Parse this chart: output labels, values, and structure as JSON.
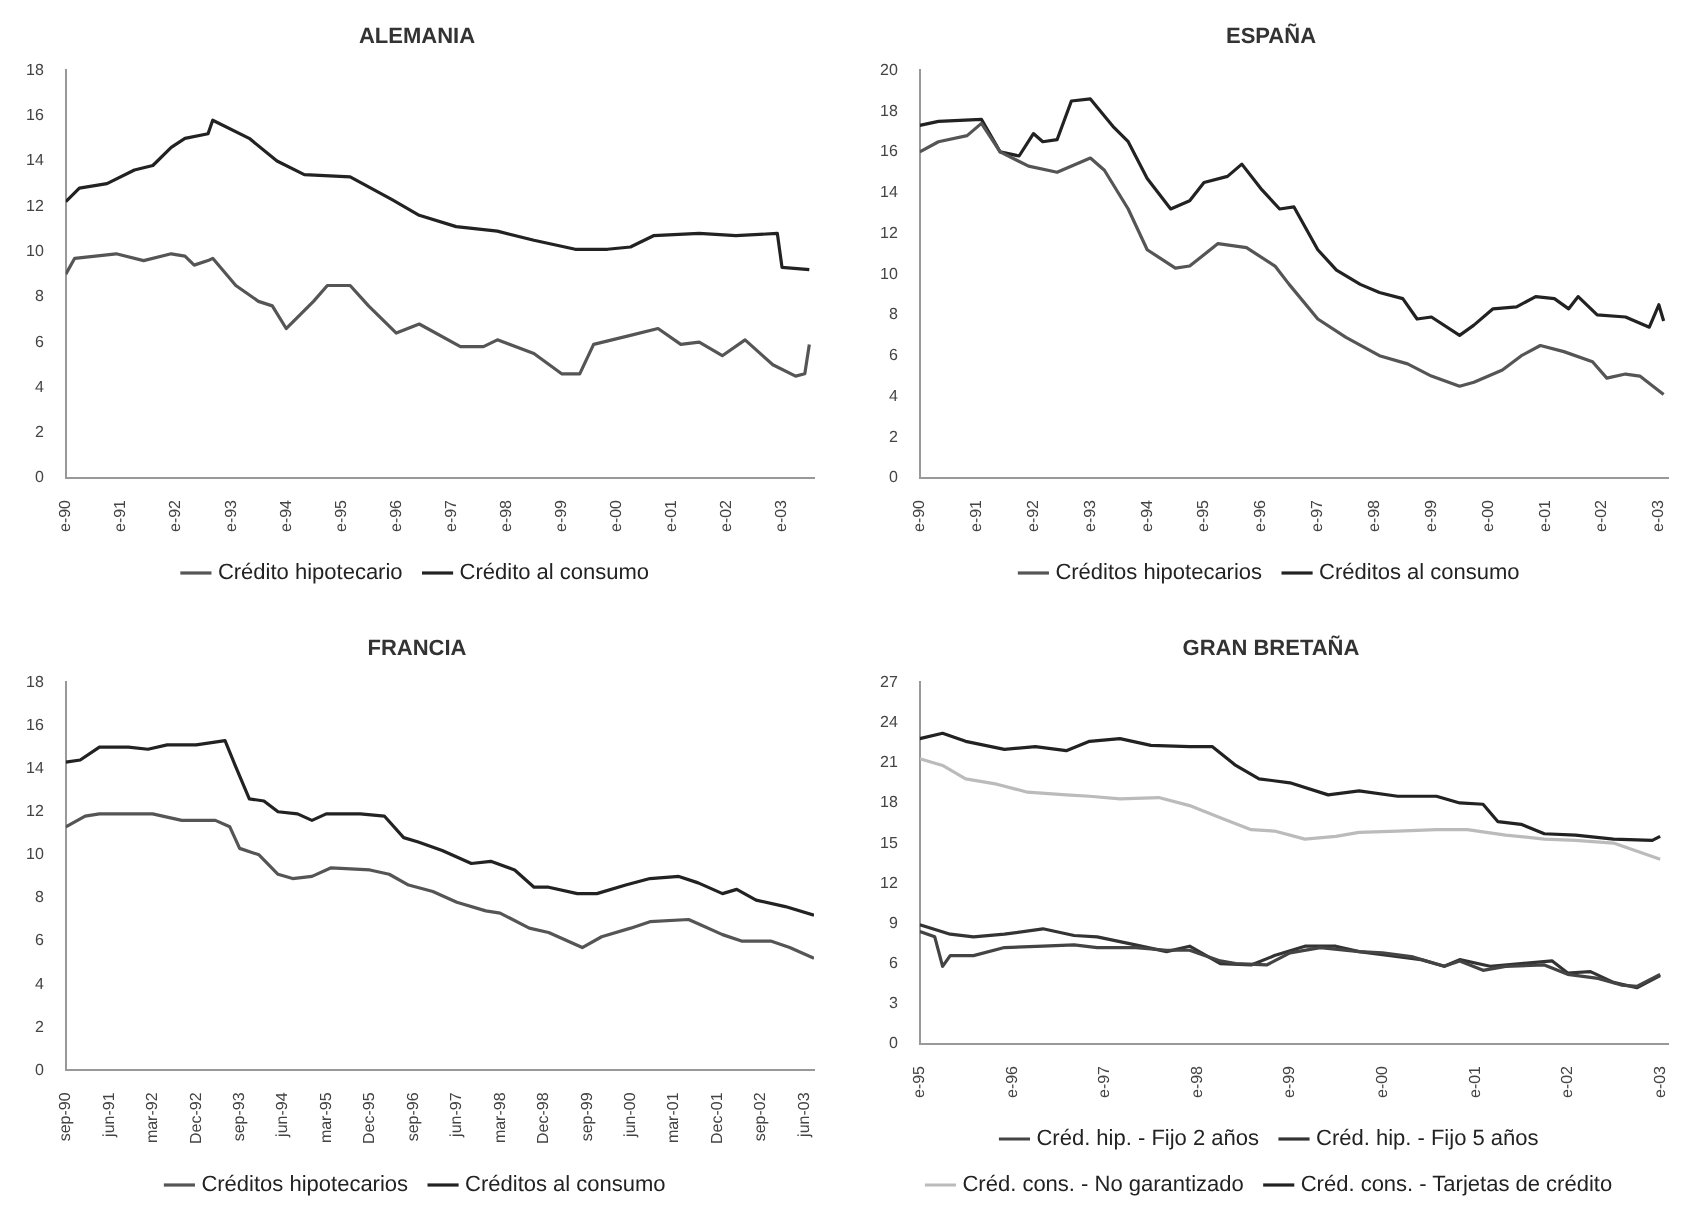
{
  "chart_data": [
    {
      "type": "line",
      "title": "ALEMANIA",
      "legend": "bottom",
      "grid": false,
      "marker": "none",
      "line_style": "solid",
      "xlim": [
        "1990-01",
        "2003-08"
      ],
      "xticks": [
        {
          "value": "1990-01",
          "label": "e-90"
        },
        {
          "value": "1991-01",
          "label": "e-91"
        },
        {
          "value": "1992-01",
          "label": "e-92"
        },
        {
          "value": "1993-01",
          "label": "e-93"
        },
        {
          "value": "1994-01",
          "label": "e-94"
        },
        {
          "value": "1995-01",
          "label": "e-95"
        },
        {
          "value": "1996-01",
          "label": "e-96"
        },
        {
          "value": "1997-01",
          "label": "e-97"
        },
        {
          "value": "1998-01",
          "label": "e-98"
        },
        {
          "value": "1999-01",
          "label": "e-99"
        },
        {
          "value": "2000-01",
          "label": "e-00"
        },
        {
          "value": "2001-01",
          "label": "e-01"
        },
        {
          "value": "2002-01",
          "label": "e-02"
        },
        {
          "value": "2003-01",
          "label": "e-03"
        }
      ],
      "ylim": [
        0,
        18
      ],
      "yticks": [
        0,
        2,
        4,
        6,
        8,
        10,
        12,
        14,
        16,
        18
      ],
      "series": [
        {
          "name": "Crédito hipotecario",
          "color": "#555555",
          "x": [
            "1990-01",
            "1990-03",
            "1990-12",
            "1991-06",
            "1991-12",
            "1992-03",
            "1992-05",
            "1992-08",
            "1992-09",
            "1993-02",
            "1993-07",
            "1993-10",
            "1994-01",
            "1994-07",
            "1994-10",
            "1995-03",
            "1995-07",
            "1996-01",
            "1996-06",
            "1997-03",
            "1997-08",
            "1997-11",
            "1998-07",
            "1999-01",
            "1999-05",
            "1999-08",
            "2000-04",
            "2000-10",
            "2001-03",
            "2001-07",
            "2001-12",
            "2002-05",
            "2002-11",
            "2003-04",
            "2003-06",
            "2003-07"
          ],
          "values": [
            9.0,
            9.7,
            9.9,
            9.6,
            9.9,
            9.8,
            9.4,
            9.6,
            9.7,
            8.5,
            7.8,
            7.6,
            6.6,
            7.8,
            8.5,
            8.5,
            7.6,
            6.4,
            6.8,
            5.8,
            5.8,
            6.1,
            5.5,
            4.6,
            4.6,
            5.9,
            6.3,
            6.6,
            5.9,
            6.0,
            5.4,
            6.1,
            5.0,
            4.5,
            4.6,
            5.9
          ]
        },
        {
          "name": "Crédito al consumo",
          "color": "#222222",
          "x": [
            "1990-01",
            "1990-04",
            "1990-10",
            "1991-04",
            "1991-08",
            "1991-12",
            "1992-03",
            "1992-08",
            "1992-09",
            "1993-05",
            "1993-11",
            "1994-05",
            "1995-03",
            "1995-12",
            "1996-06",
            "1997-02",
            "1997-11",
            "1998-07",
            "1999-04",
            "1999-11",
            "2000-04",
            "2000-09",
            "2001-07",
            "2002-03",
            "2002-12",
            "2003-01",
            "2003-07"
          ],
          "values": [
            12.2,
            12.8,
            13.0,
            13.6,
            13.8,
            14.6,
            15.0,
            15.2,
            15.8,
            15.0,
            14.0,
            13.4,
            13.3,
            12.3,
            11.6,
            11.1,
            10.9,
            10.5,
            10.1,
            10.1,
            10.2,
            10.7,
            10.8,
            10.7,
            10.8,
            9.3,
            9.2
          ]
        }
      ]
    },
    {
      "type": "line",
      "title": "ESPAÑA",
      "legend": "bottom",
      "grid": false,
      "marker": "none",
      "line_style": "solid",
      "xlim": [
        "1990-01",
        "2003-03"
      ],
      "xticks": [
        {
          "value": "1990-01",
          "label": "e-90"
        },
        {
          "value": "1991-01",
          "label": "e-91"
        },
        {
          "value": "1992-01",
          "label": "e-92"
        },
        {
          "value": "1993-01",
          "label": "e-93"
        },
        {
          "value": "1994-01",
          "label": "e-94"
        },
        {
          "value": "1995-01",
          "label": "e-95"
        },
        {
          "value": "1996-01",
          "label": "e-96"
        },
        {
          "value": "1997-01",
          "label": "e-97"
        },
        {
          "value": "1998-01",
          "label": "e-98"
        },
        {
          "value": "1999-01",
          "label": "e-99"
        },
        {
          "value": "2000-01",
          "label": "e-00"
        },
        {
          "value": "2001-01",
          "label": "e-01"
        },
        {
          "value": "2002-01",
          "label": "e-02"
        },
        {
          "value": "2003-01",
          "label": "e-03"
        }
      ],
      "ylim": [
        0,
        20
      ],
      "yticks": [
        0,
        2,
        4,
        6,
        8,
        10,
        12,
        14,
        16,
        18,
        20
      ],
      "series": [
        {
          "name": "Créditos hipotecarios",
          "color": "#555555",
          "x": [
            "1990-01",
            "1990-05",
            "1990-11",
            "1991-02",
            "1991-06",
            "1991-12",
            "1992-06",
            "1993-01",
            "1993-04",
            "1993-09",
            "1994-01",
            "1994-07",
            "1994-10",
            "1995-04",
            "1995-10",
            "1996-04",
            "1996-07",
            "1997-01",
            "1997-07",
            "1998-02",
            "1998-08",
            "1999-01",
            "1999-07",
            "1999-10",
            "2000-04",
            "2000-08",
            "2000-12",
            "2001-05",
            "2001-11",
            "2002-02",
            "2002-06",
            "2002-09",
            "2003-02"
          ],
          "values": [
            16.0,
            16.5,
            16.8,
            17.4,
            16.0,
            15.3,
            15.0,
            15.7,
            15.1,
            13.2,
            11.2,
            10.3,
            10.4,
            11.5,
            11.3,
            10.4,
            9.5,
            7.8,
            6.9,
            6.0,
            5.6,
            5.0,
            4.5,
            4.7,
            5.3,
            6.0,
            6.5,
            6.2,
            5.7,
            4.9,
            5.1,
            5.0,
            4.1
          ]
        },
        {
          "name": "Créditos al consumo",
          "color": "#222222",
          "x": [
            "1990-01",
            "1990-05",
            "1991-02",
            "1991-06",
            "1991-10",
            "1992-01",
            "1992-03",
            "1992-06",
            "1992-09",
            "1993-01",
            "1993-06",
            "1993-09",
            "1994-01",
            "1994-06",
            "1994-10",
            "1995-01",
            "1995-06",
            "1995-09",
            "1996-01",
            "1996-05",
            "1996-08",
            "1997-01",
            "1997-05",
            "1997-10",
            "1998-02",
            "1998-07",
            "1998-10",
            "1999-01",
            "1999-07",
            "1999-10",
            "2000-02",
            "2000-07",
            "2000-11",
            "2001-03",
            "2001-06",
            "2001-08",
            "2001-12",
            "2002-06",
            "2002-11",
            "2003-01",
            "2003-02"
          ],
          "values": [
            17.3,
            17.5,
            17.6,
            16.0,
            15.8,
            16.9,
            16.5,
            16.6,
            18.5,
            18.6,
            17.2,
            16.5,
            14.7,
            13.2,
            13.6,
            14.5,
            14.8,
            15.4,
            14.2,
            13.2,
            13.3,
            11.2,
            10.2,
            9.5,
            9.1,
            8.8,
            7.8,
            7.9,
            7.0,
            7.5,
            8.3,
            8.4,
            8.9,
            8.8,
            8.3,
            8.9,
            8.0,
            7.9,
            7.4,
            8.5,
            7.7
          ]
        }
      ]
    },
    {
      "type": "line",
      "title": "FRANCIA",
      "legend": "bottom",
      "grid": false,
      "marker": "none",
      "line_style": "solid",
      "xlim": [
        "1990-09",
        "2003-08"
      ],
      "xticks": [
        {
          "value": "1990-09",
          "label": "sep-90"
        },
        {
          "value": "1991-06",
          "label": "jun-91"
        },
        {
          "value": "1992-03",
          "label": "mar-92"
        },
        {
          "value": "1992-12",
          "label": "Dec-92"
        },
        {
          "value": "1993-09",
          "label": "sep-93"
        },
        {
          "value": "1994-06",
          "label": "jun-94"
        },
        {
          "value": "1995-03",
          "label": "mar-95"
        },
        {
          "value": "1995-12",
          "label": "Dec-95"
        },
        {
          "value": "1996-09",
          "label": "sep-96"
        },
        {
          "value": "1997-06",
          "label": "jun-97"
        },
        {
          "value": "1998-03",
          "label": "mar-98"
        },
        {
          "value": "1998-12",
          "label": "Dec-98"
        },
        {
          "value": "1999-09",
          "label": "sep-99"
        },
        {
          "value": "2000-06",
          "label": "jun-00"
        },
        {
          "value": "2001-03",
          "label": "mar-01"
        },
        {
          "value": "2001-12",
          "label": "Dec-01"
        },
        {
          "value": "2002-09",
          "label": "sep-02"
        },
        {
          "value": "2003-06",
          "label": "jun-03"
        }
      ],
      "ylim": [
        0,
        18
      ],
      "yticks": [
        0,
        2,
        4,
        6,
        8,
        10,
        12,
        14,
        16,
        18
      ],
      "series": [
        {
          "name": "Créditos hipotecarios",
          "color": "#555555",
          "x": [
            "1990-09",
            "1991-01",
            "1991-04",
            "1991-10",
            "1992-03",
            "1992-09",
            "1993-04",
            "1993-07",
            "1993-09",
            "1994-01",
            "1994-05",
            "1994-08",
            "1994-12",
            "1995-04",
            "1995-12",
            "1996-04",
            "1996-08",
            "1997-01",
            "1997-06",
            "1997-12",
            "1998-03",
            "1998-09",
            "1999-01",
            "1999-08",
            "1999-12",
            "2000-06",
            "2000-10",
            "2001-06",
            "2001-08",
            "2002-01",
            "2002-05",
            "2002-11",
            "2003-03",
            "2003-08"
          ],
          "values": [
            11.3,
            11.8,
            11.9,
            11.9,
            11.9,
            11.6,
            11.6,
            11.3,
            10.3,
            10.0,
            9.1,
            8.9,
            9.0,
            9.4,
            9.3,
            9.1,
            8.6,
            8.3,
            7.8,
            7.4,
            7.3,
            6.6,
            6.4,
            5.7,
            6.2,
            6.6,
            6.9,
            7.0,
            6.8,
            6.3,
            6.0,
            6.0,
            5.7,
            5.2
          ]
        },
        {
          "name": "Créditos al consumo",
          "color": "#222222",
          "x": [
            "1990-09",
            "1990-12",
            "1991-04",
            "1991-10",
            "1992-02",
            "1992-06",
            "1992-12",
            "1993-06",
            "1993-08",
            "1993-11",
            "1994-02",
            "1994-05",
            "1994-09",
            "1994-12",
            "1995-03",
            "1995-10",
            "1996-03",
            "1996-07",
            "1996-10",
            "1997-03",
            "1997-09",
            "1998-01",
            "1998-06",
            "1998-10",
            "1999-01",
            "1999-07",
            "1999-11",
            "2000-05",
            "2000-10",
            "2001-04",
            "2001-08",
            "2002-01",
            "2002-04",
            "2002-08",
            "2003-02",
            "2003-08"
          ],
          "values": [
            14.3,
            14.4,
            15.0,
            15.0,
            14.9,
            15.1,
            15.1,
            15.3,
            14.2,
            12.6,
            12.5,
            12.0,
            11.9,
            11.6,
            11.9,
            11.9,
            11.8,
            10.8,
            10.6,
            10.2,
            9.6,
            9.7,
            9.3,
            8.5,
            8.5,
            8.2,
            8.2,
            8.6,
            8.9,
            9.0,
            8.7,
            8.2,
            8.4,
            7.9,
            7.6,
            7.2
          ]
        }
      ]
    },
    {
      "type": "line",
      "title": "GRAN BRETAÑA",
      "legend": "bottom",
      "grid": false,
      "marker": "none",
      "line_style": "solid",
      "xlim": [
        "1995-01",
        "2003-02"
      ],
      "xticks": [
        {
          "value": "1995-01",
          "label": "e-95"
        },
        {
          "value": "1996-01",
          "label": "e-96"
        },
        {
          "value": "1997-01",
          "label": "e-97"
        },
        {
          "value": "1998-01",
          "label": "e-98"
        },
        {
          "value": "1999-01",
          "label": "e-99"
        },
        {
          "value": "2000-01",
          "label": "e-00"
        },
        {
          "value": "2001-01",
          "label": "e-01"
        },
        {
          "value": "2002-01",
          "label": "e-02"
        },
        {
          "value": "2003-01",
          "label": "e-03"
        }
      ],
      "ylim": [
        0,
        27
      ],
      "yticks": [
        0,
        3,
        6,
        9,
        12,
        15,
        18,
        21,
        24,
        27
      ],
      "series": [
        {
          "name": "Créd. hip. - Fijo 2 años",
          "color": "#444444",
          "x": [
            "1995-01",
            "1995-03",
            "1995-04",
            "1995-05",
            "1995-08",
            "1995-12",
            "1996-05",
            "1996-09",
            "1996-12",
            "1997-05",
            "1997-09",
            "1997-12",
            "1998-04",
            "1998-06",
            "1998-10",
            "1999-01",
            "1999-05",
            "1999-10",
            "2000-01",
            "2000-05",
            "2000-09",
            "2000-11",
            "2001-02",
            "2001-05",
            "2001-10",
            "2002-01",
            "2002-05",
            "2002-08",
            "2002-10",
            "2003-01"
          ],
          "values": [
            8.4,
            8.0,
            5.8,
            6.6,
            6.6,
            7.2,
            7.3,
            7.4,
            7.2,
            7.2,
            7.0,
            7.0,
            6.2,
            6.0,
            5.9,
            6.8,
            7.2,
            6.9,
            6.8,
            6.5,
            5.8,
            6.2,
            5.5,
            5.8,
            5.9,
            5.2,
            4.9,
            4.4,
            4.3,
            5.2
          ]
        },
        {
          "name": "Créd. hip. - Fijo 5 años",
          "color": "#333333",
          "x": [
            "1995-01",
            "1995-05",
            "1995-08",
            "1995-12",
            "1996-05",
            "1996-09",
            "1996-12",
            "1997-05",
            "1997-09",
            "1997-12",
            "1998-04",
            "1998-08",
            "1998-11",
            "1999-03",
            "1999-07",
            "1999-10",
            "2000-02",
            "2000-06",
            "2000-09",
            "2000-11",
            "2001-03",
            "2001-07",
            "2001-11",
            "2002-01",
            "2002-04",
            "2002-07",
            "2002-10",
            "2003-01"
          ],
          "values": [
            8.9,
            8.2,
            8.0,
            8.2,
            8.6,
            8.1,
            8.0,
            7.4,
            6.9,
            7.3,
            6.0,
            5.9,
            6.6,
            7.3,
            7.3,
            6.9,
            6.6,
            6.3,
            5.8,
            6.3,
            5.8,
            6.0,
            6.2,
            5.3,
            5.4,
            4.6,
            4.2,
            5.1
          ]
        },
        {
          "name": "Créd. cons. - No garantizado",
          "color": "#bbbbbb",
          "x": [
            "1995-01",
            "1995-04",
            "1995-07",
            "1995-11",
            "1996-03",
            "1996-08",
            "1996-11",
            "1997-03",
            "1997-08",
            "1997-12",
            "1998-04",
            "1998-08",
            "1998-11",
            "1999-03",
            "1999-07",
            "1999-10",
            "2000-03",
            "2000-08",
            "2000-12",
            "2001-05",
            "2001-10",
            "2002-02",
            "2002-07",
            "2003-01"
          ],
          "values": [
            21.3,
            20.8,
            19.8,
            19.4,
            18.8,
            18.6,
            18.5,
            18.3,
            18.4,
            17.8,
            16.9,
            16.0,
            15.9,
            15.3,
            15.5,
            15.8,
            15.9,
            16.0,
            16.0,
            15.6,
            15.3,
            15.2,
            15.0,
            13.8
          ]
        },
        {
          "name": "Créd. cons. - Tarjetas de crédito",
          "color": "#222222",
          "x": [
            "1995-01",
            "1995-04",
            "1995-07",
            "1995-12",
            "1996-04",
            "1996-08",
            "1996-11",
            "1997-03",
            "1997-07",
            "1997-12",
            "1998-03",
            "1998-06",
            "1998-09",
            "1999-01",
            "1999-06",
            "1999-10",
            "2000-03",
            "2000-08",
            "2000-11",
            "2001-02",
            "2001-04",
            "2001-07",
            "2001-10",
            "2002-02",
            "2002-07",
            "2002-12",
            "2003-01"
          ],
          "values": [
            22.8,
            23.2,
            22.6,
            22.0,
            22.2,
            21.9,
            22.6,
            22.8,
            22.3,
            22.2,
            22.2,
            20.8,
            19.8,
            19.5,
            18.6,
            18.9,
            18.5,
            18.5,
            18.0,
            17.9,
            16.6,
            16.4,
            15.7,
            15.6,
            15.3,
            15.2,
            15.5
          ]
        }
      ]
    }
  ]
}
